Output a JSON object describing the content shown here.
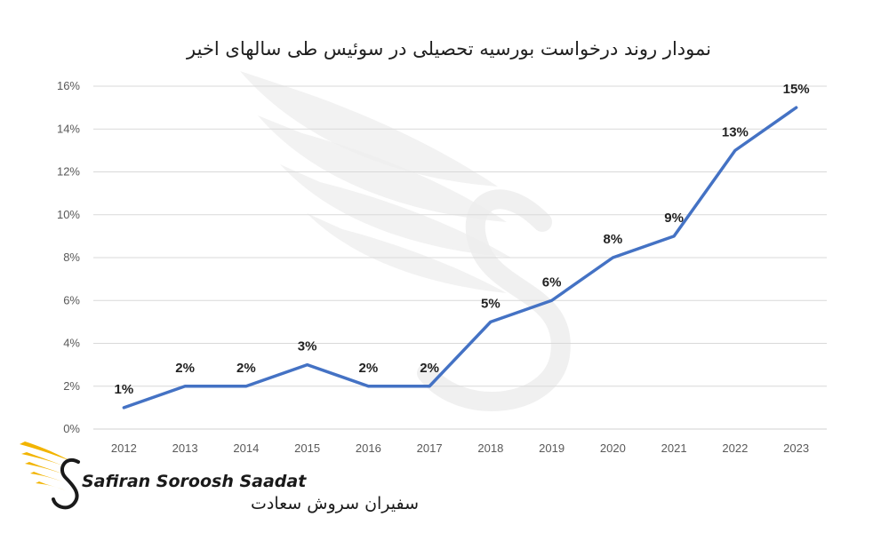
{
  "chart_data": {
    "type": "line",
    "title": "نمودار روند درخواست بورسیه تحصیلی در سوئیس طی سالهای اخیر",
    "xlabel": "",
    "ylabel": "",
    "categories": [
      "2012",
      "2013",
      "2014",
      "2015",
      "2016",
      "2017",
      "2018",
      "2019",
      "2020",
      "2021",
      "2022",
      "2023"
    ],
    "series": [
      {
        "values": [
          1,
          2,
          2,
          3,
          2,
          2,
          5,
          6,
          8,
          9,
          13,
          15
        ],
        "data_labels": [
          "1%",
          "2%",
          "2%",
          "3%",
          "2%",
          "2%",
          "5%",
          "6%",
          "8%",
          "9%",
          "13%",
          "15%"
        ]
      }
    ],
    "yticks": [
      "0%",
      "2%",
      "4%",
      "6%",
      "8%",
      "10%",
      "12%",
      "14%",
      "16%"
    ],
    "ylim": [
      0,
      16
    ],
    "y_unit": "%",
    "grid": true,
    "legend": "none",
    "colors": {
      "line": "#4472C4",
      "logo_gold": "#F2B400"
    }
  },
  "logo": {
    "text_en": "Safiran Soroosh Saadat",
    "text_fa": "سفیران سروش سعادت"
  }
}
